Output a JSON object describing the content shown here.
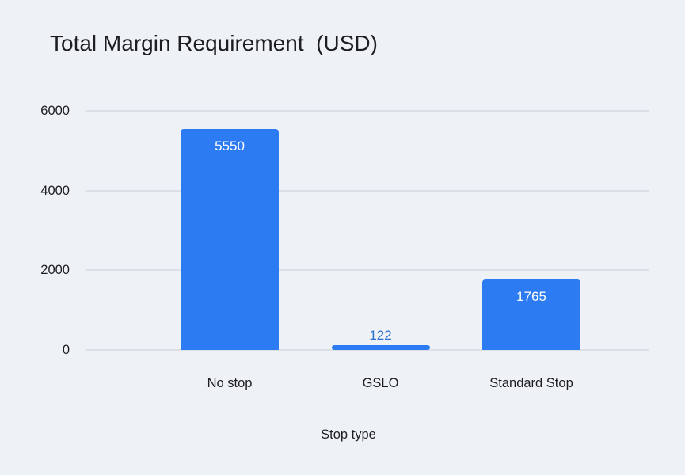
{
  "page": {
    "background_color": "#eef1f6"
  },
  "chart_data": {
    "type": "bar",
    "title": "Total Margin Requirement  (USD)",
    "categories": [
      "No stop",
      "GSLO",
      "Standard Stop"
    ],
    "values": [
      5550,
      122,
      1765
    ],
    "value_labels": [
      "5550",
      "122",
      "1765"
    ],
    "xlabel": "Stop type",
    "ylabel": "",
    "ylim": [
      0,
      6000
    ],
    "yticks": [
      0,
      2000,
      4000,
      6000
    ],
    "grid": true,
    "legend": "none",
    "bar_color": "#2c7bf2",
    "value_label_inside_color": "#ffffff",
    "value_label_outside_color": "#2a6fd4",
    "text_color": "#1c1e21",
    "grid_color": "#dcdfe5"
  }
}
